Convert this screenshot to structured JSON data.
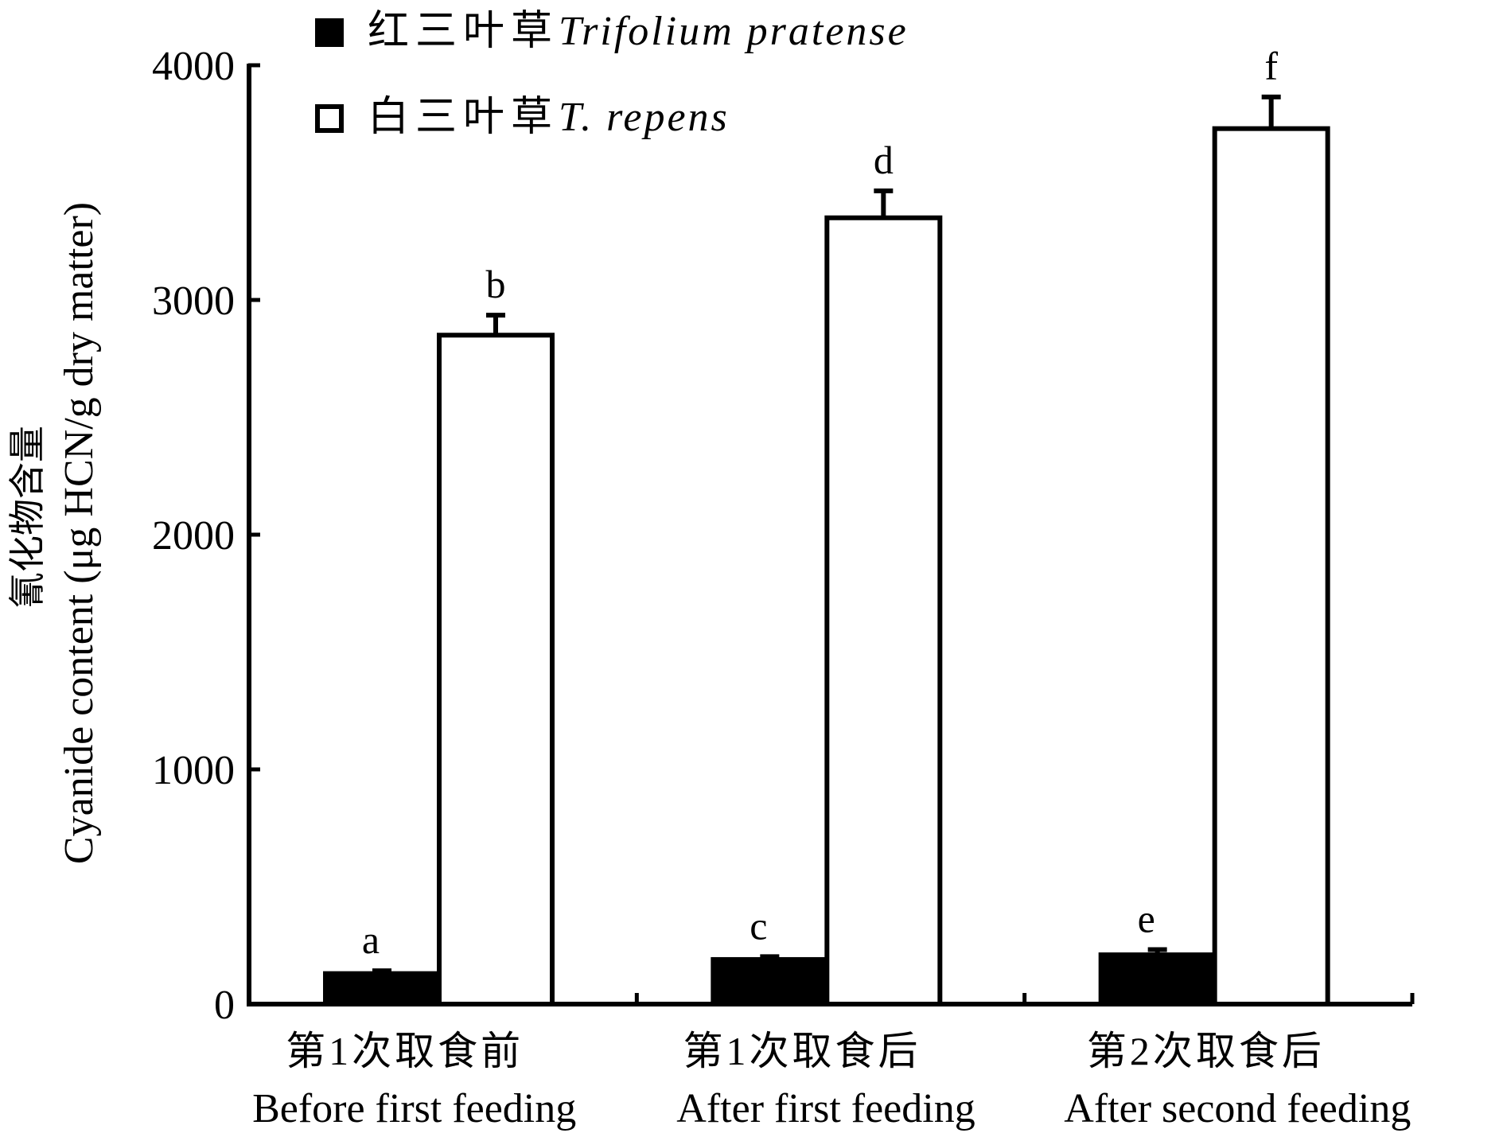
{
  "chart_data": {
    "type": "bar",
    "ylabel_line1": "氰化物含量",
    "ylabel_line2": "Cyanide content (μg HCN/g dry matter)",
    "ylim": [
      0,
      4000
    ],
    "yticks": [
      0,
      1000,
      2000,
      3000,
      4000
    ],
    "ytick_labels": [
      "0",
      "1000",
      "2000",
      "3000",
      "4000"
    ],
    "categories": [
      {
        "cn": "第1次取食前",
        "en": "Before first feeding"
      },
      {
        "cn": "第1次取食后",
        "en": "After first feeding"
      },
      {
        "cn": "第2次取食后",
        "en": "After second feeding"
      }
    ],
    "series": [
      {
        "name_cn": "红三叶草",
        "name_sp": "Trifolium pratense",
        "fill": "#000000",
        "values": [
          130,
          190,
          210
        ],
        "errors": [
          12,
          12,
          22
        ],
        "letters": [
          "a",
          "c",
          "e"
        ]
      },
      {
        "name_cn": "白三叶草",
        "name_sp": "T. repens",
        "fill": "#ffffff",
        "values": [
          2850,
          3350,
          3730
        ],
        "errors": [
          85,
          115,
          135
        ],
        "letters": [
          "b",
          "d",
          "f"
        ]
      }
    ],
    "legend_position": "top-left",
    "grid": false
  }
}
